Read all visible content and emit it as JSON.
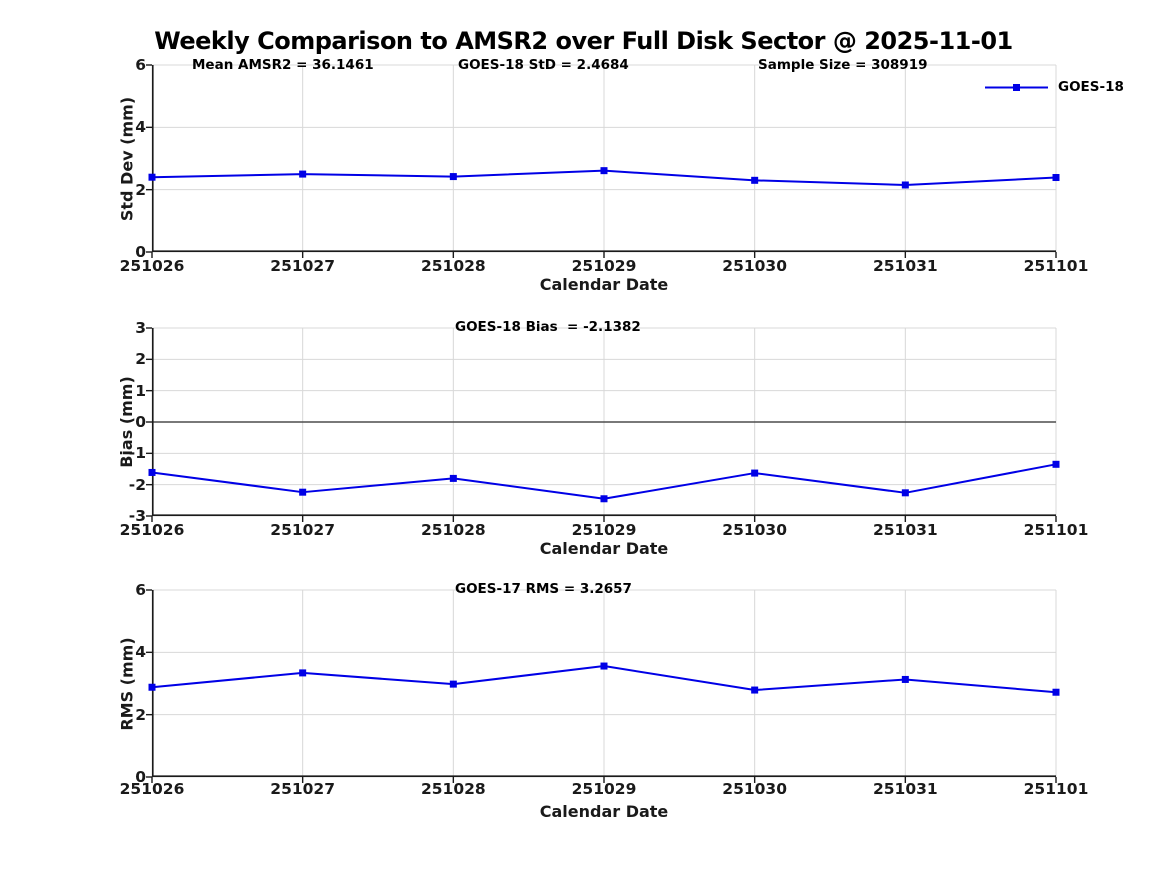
{
  "figure": {
    "title": "Weekly Comparison to AMSR2 over Full Disk Sector @ 2025-11-01"
  },
  "colors": {
    "line": "#0000E6",
    "grid": "#D8D8D8",
    "spine": "#1A1A1A",
    "tick_label": "#1A1A1A",
    "annotation_text": "#000000",
    "zero_line": "#4D4D4D",
    "background": "#FFFFFF"
  },
  "legend": {
    "label": "GOES-18",
    "position": "top-right",
    "marker": "filled-square",
    "series_color": "#0000E6"
  },
  "chart_data": [
    {
      "type": "line",
      "ylabel": "Std Dev (mm)",
      "xlabel": "Calendar Date",
      "ylim": [
        0,
        6
      ],
      "yticks": [
        0,
        2,
        4,
        6
      ],
      "grid": true,
      "legend_visible": true,
      "zero_line": false,
      "categories": [
        "251026",
        "251027",
        "251028",
        "251029",
        "251030",
        "251031",
        "251101"
      ],
      "series": [
        {
          "name": "GOES-18",
          "values": [
            2.4,
            2.5,
            2.42,
            2.61,
            2.3,
            2.15,
            2.39
          ]
        }
      ],
      "annotations": [
        {
          "text": "Mean AMSR2 = 36.1461"
        },
        {
          "text": "GOES-18 StD = 2.4684"
        },
        {
          "text": "Sample Size = 308919"
        }
      ]
    },
    {
      "type": "line",
      "ylabel": "Bias (mm)",
      "xlabel": "Calendar Date",
      "ylim": [
        -3,
        3
      ],
      "yticks": [
        -3,
        -2,
        -1,
        0,
        1,
        2,
        3
      ],
      "grid": true,
      "legend_visible": false,
      "zero_line": true,
      "categories": [
        "251026",
        "251027",
        "251028",
        "251029",
        "251030",
        "251031",
        "251101"
      ],
      "series": [
        {
          "name": "GOES-18",
          "values": [
            -1.61,
            -2.24,
            -1.8,
            -2.45,
            -1.63,
            -2.26,
            -1.35
          ]
        }
      ],
      "annotations": [
        {
          "text": "GOES-18 Bias  = -2.1382"
        }
      ]
    },
    {
      "type": "line",
      "ylabel": "RMS (mm)",
      "xlabel": "Calendar Date",
      "ylim": [
        0,
        6
      ],
      "yticks": [
        0,
        2,
        4,
        6
      ],
      "grid": true,
      "legend_visible": false,
      "zero_line": false,
      "categories": [
        "251026",
        "251027",
        "251028",
        "251029",
        "251030",
        "251031",
        "251101"
      ],
      "series": [
        {
          "name": "GOES-18",
          "values": [
            2.88,
            3.34,
            2.98,
            3.56,
            2.79,
            3.13,
            2.72
          ]
        }
      ],
      "annotations": [
        {
          "text": "GOES-17 RMS = 3.2657"
        }
      ]
    }
  ]
}
